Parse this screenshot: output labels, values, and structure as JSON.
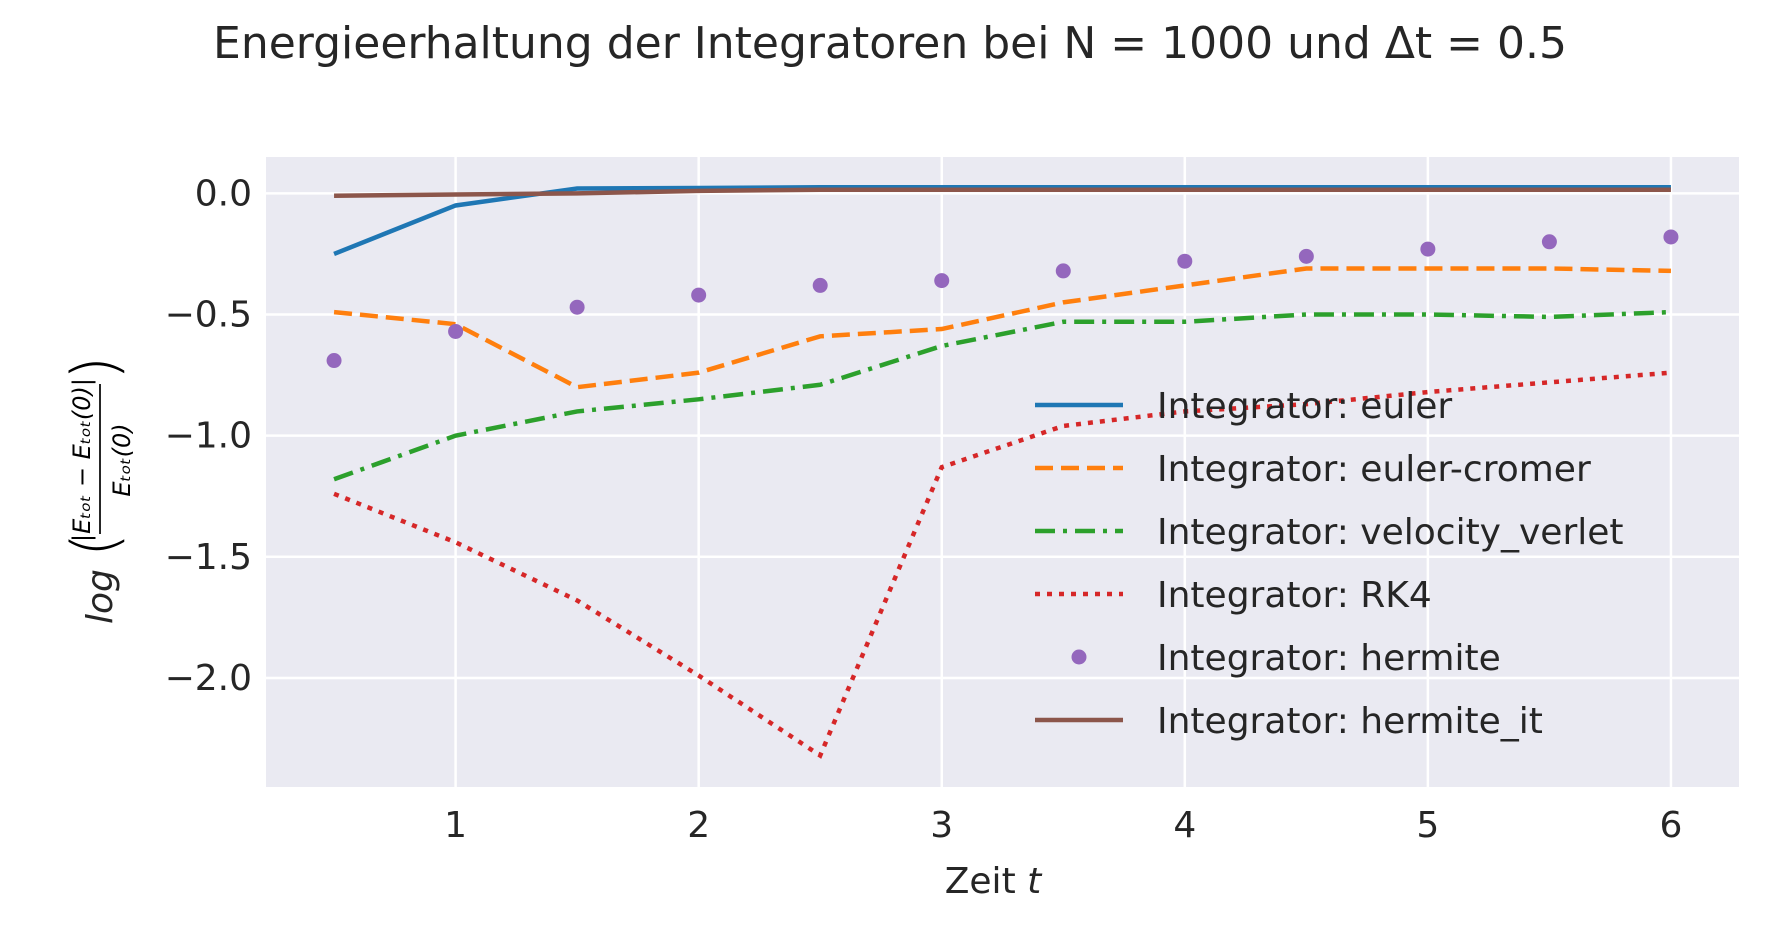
{
  "chart_data": {
    "type": "line",
    "title": "Energieerhaltung der Integratoren bei N = 1000 und Δt = 0.5",
    "xlabel": "Zeit t",
    "ylabel": "log(|E_tot − E_tot(0)| / E_tot(0))",
    "xlim": [
      0.22,
      6.28
    ],
    "ylim": [
      -2.45,
      0.15
    ],
    "xticks": [
      1,
      2,
      3,
      4,
      5,
      6
    ],
    "yticks": [
      0.0,
      -0.5,
      -1.0,
      -1.5,
      -2.0
    ],
    "xtick_labels": [
      "1",
      "2",
      "3",
      "4",
      "5",
      "6"
    ],
    "ytick_labels": [
      "0.0",
      "−0.5",
      "−1.0",
      "−1.5",
      "−2.0"
    ],
    "grid": true,
    "legend_position": "center-right",
    "x": [
      0.5,
      1.0,
      1.5,
      2.0,
      2.5,
      3.0,
      3.5,
      4.0,
      4.5,
      5.0,
      5.5,
      6.0
    ],
    "series": [
      {
        "name": "Integrator: euler",
        "color": "#1f77b4",
        "style": "solid",
        "values": [
          -0.25,
          -0.05,
          0.02,
          0.022,
          0.025,
          0.025,
          0.025,
          0.025,
          0.025,
          0.025,
          0.025,
          0.025
        ]
      },
      {
        "name": "Integrator: euler-cromer",
        "color": "#ff7f0e",
        "style": "dashed",
        "values": [
          -0.49,
          -0.54,
          -0.8,
          -0.74,
          -0.59,
          -0.56,
          -0.45,
          -0.38,
          -0.31,
          -0.31,
          -0.31,
          -0.32
        ]
      },
      {
        "name": "Integrator: velocity_verlet",
        "color": "#2ca02c",
        "style": "dashdot",
        "values": [
          -1.18,
          -1.0,
          -0.9,
          -0.85,
          -0.79,
          -0.63,
          -0.53,
          -0.53,
          -0.5,
          -0.5,
          -0.51,
          -0.49
        ]
      },
      {
        "name": "Integrator: RK4",
        "color": "#d62728",
        "style": "dotted",
        "values": [
          -1.24,
          -1.44,
          -1.68,
          -1.99,
          -2.32,
          -1.13,
          -0.96,
          -0.9,
          -0.87,
          -0.82,
          -0.78,
          -0.74
        ]
      },
      {
        "name": "Integrator: hermite",
        "color": "#9467bd",
        "style": "markers",
        "values": [
          -0.69,
          -0.57,
          -0.47,
          -0.42,
          -0.38,
          -0.36,
          -0.32,
          -0.28,
          -0.26,
          -0.23,
          -0.2,
          -0.18
        ]
      },
      {
        "name": "Integrator: hermite_it",
        "color": "#8c564b",
        "style": "solid",
        "values": [
          -0.01,
          -0.005,
          0.0,
          0.01,
          0.015,
          0.015,
          0.015,
          0.015,
          0.015,
          0.015,
          0.015,
          0.015
        ]
      }
    ]
  }
}
